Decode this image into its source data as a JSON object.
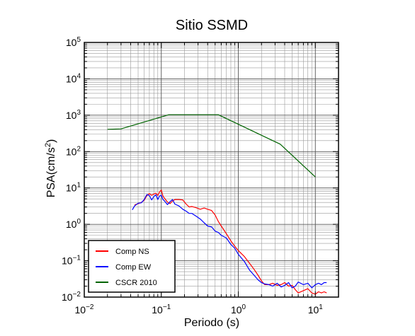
{
  "chart_data": {
    "type": "line",
    "title": "Sitio SSMD",
    "xlabel": "Periodo (s)",
    "ylabel": {
      "base": "PSA(cm/s",
      "sup": "2",
      "tail": ")"
    },
    "x_scale": "log",
    "y_scale": "log",
    "xlim": [
      0.01,
      20
    ],
    "ylim": [
      0.01,
      100000
    ],
    "grid": true,
    "legend_position": "bottom-left",
    "x_ticks": [
      {
        "value": 0.01,
        "base": "10",
        "exp": "−2"
      },
      {
        "value": 0.1,
        "base": "10",
        "exp": "−1"
      },
      {
        "value": 1,
        "base": "10",
        "exp": "0"
      },
      {
        "value": 10,
        "base": "10",
        "exp": "1"
      }
    ],
    "y_ticks": [
      {
        "value": 0.01,
        "base": "10",
        "exp": "−2"
      },
      {
        "value": 0.1,
        "base": "10",
        "exp": "−1"
      },
      {
        "value": 1,
        "base": "10",
        "exp": "0"
      },
      {
        "value": 10,
        "base": "10",
        "exp": "1"
      },
      {
        "value": 100,
        "base": "10",
        "exp": "2"
      },
      {
        "value": 1000,
        "base": "10",
        "exp": "3"
      },
      {
        "value": 10000,
        "base": "10",
        "exp": "4"
      },
      {
        "value": 100000,
        "base": "10",
        "exp": "5"
      }
    ],
    "series": [
      {
        "name": "Comp NS",
        "color": "#ff0000",
        "x": [
          0.045,
          0.05,
          0.055,
          0.06,
          0.065,
          0.07,
          0.075,
          0.08,
          0.085,
          0.09,
          0.095,
          0.1,
          0.105,
          0.11,
          0.12,
          0.13,
          0.14,
          0.15,
          0.17,
          0.19,
          0.21,
          0.23,
          0.25,
          0.28,
          0.32,
          0.36,
          0.4,
          0.45,
          0.5,
          0.55,
          0.6,
          0.7,
          0.8,
          0.9,
          1.0,
          1.2,
          1.4,
          1.6,
          1.8,
          2.0,
          2.2,
          2.5,
          2.8,
          3.2,
          3.6,
          4.0,
          4.5,
          5.0,
          5.5,
          6.0,
          7.0,
          8.0,
          9.0,
          10,
          11,
          12,
          13,
          14
        ],
        "values": [
          3.4,
          3.7,
          4.0,
          4.6,
          6.2,
          7.0,
          6.3,
          6.8,
          7.2,
          6.2,
          7.8,
          8.8,
          6.0,
          5.2,
          4.1,
          3.7,
          4.4,
          4.8,
          4.8,
          4.7,
          3.6,
          3.0,
          3.1,
          2.9,
          2.6,
          2.8,
          2.6,
          2.4,
          1.8,
          1.2,
          0.9,
          0.55,
          0.35,
          0.25,
          0.19,
          0.13,
          0.085,
          0.058,
          0.04,
          0.028,
          0.022,
          0.022,
          0.024,
          0.021,
          0.022,
          0.025,
          0.02,
          0.021,
          0.016,
          0.013,
          0.015,
          0.017,
          0.013,
          0.012,
          0.014,
          0.013,
          0.014,
          0.013
        ]
      },
      {
        "name": "Comp EW",
        "color": "#0000ff",
        "x": [
          0.042,
          0.045,
          0.05,
          0.055,
          0.06,
          0.065,
          0.07,
          0.075,
          0.08,
          0.085,
          0.09,
          0.095,
          0.1,
          0.105,
          0.11,
          0.12,
          0.13,
          0.14,
          0.15,
          0.17,
          0.19,
          0.21,
          0.23,
          0.25,
          0.28,
          0.32,
          0.36,
          0.4,
          0.45,
          0.5,
          0.55,
          0.6,
          0.7,
          0.8,
          0.9,
          1.0,
          1.2,
          1.4,
          1.6,
          1.8,
          2.0,
          2.2,
          2.5,
          2.8,
          3.2,
          3.6,
          4.0,
          4.5,
          5.0,
          5.5,
          6.0,
          7.0,
          8.0,
          9.0,
          10,
          11,
          12,
          13,
          14
        ],
        "values": [
          2.5,
          3.2,
          3.8,
          3.9,
          4.8,
          6.6,
          6.2,
          4.7,
          5.8,
          6.5,
          4.8,
          6.0,
          6.3,
          4.8,
          4.4,
          3.5,
          4.2,
          4.8,
          3.6,
          3.2,
          2.6,
          2.3,
          2.0,
          2.0,
          1.7,
          1.4,
          1.1,
          0.9,
          0.85,
          0.65,
          0.6,
          0.5,
          0.42,
          0.28,
          0.22,
          0.15,
          0.095,
          0.055,
          0.04,
          0.03,
          0.025,
          0.023,
          0.022,
          0.02,
          0.024,
          0.019,
          0.021,
          0.025,
          0.018,
          0.02,
          0.026,
          0.022,
          0.024,
          0.018,
          0.022,
          0.024,
          0.022,
          0.025,
          0.025
        ]
      },
      {
        "name": "CSCR 2010",
        "color": "#006400",
        "x": [
          0.02,
          0.03,
          0.125,
          0.55,
          3.5,
          10
        ],
        "values": [
          410,
          420,
          1030,
          1030,
          160,
          20
        ]
      }
    ]
  }
}
